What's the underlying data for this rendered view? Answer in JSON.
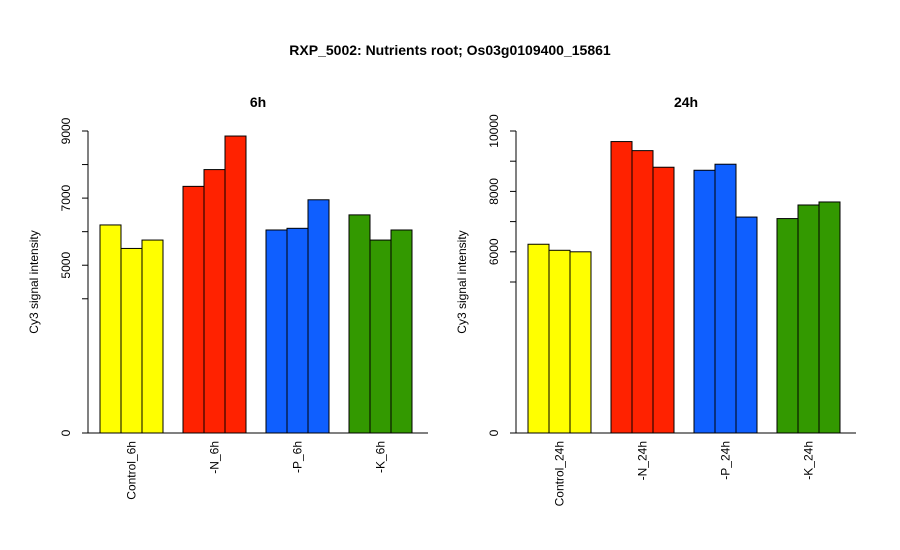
{
  "figure": {
    "title": "RXP_5002: Nutrients root; Os03g0109400_15861"
  },
  "chart_data": [
    {
      "type": "bar",
      "title": "6h",
      "ylabel": "Cy3 signal intensity",
      "ylim": [
        0,
        9000
      ],
      "yticks": [
        0,
        5000,
        7000,
        9000
      ],
      "categories": [
        "Control_6h",
        "-N_6h",
        "-P_6h",
        "-K_6h"
      ],
      "group_colors": [
        "#FFFF00",
        "#FF2200",
        "#0F5FFF",
        "#339900"
      ],
      "series": [
        {
          "values": [
            6200,
            7350,
            6050,
            6500
          ]
        },
        {
          "values": [
            5500,
            7850,
            6100,
            5750
          ]
        },
        {
          "values": [
            5750,
            8850,
            6950,
            6050
          ]
        }
      ]
    },
    {
      "type": "bar",
      "title": "24h",
      "ylabel": "Cy3 signal intensity",
      "ylim": [
        0,
        10000
      ],
      "yticks": [
        0,
        6000,
        8000,
        10000
      ],
      "categories": [
        "Control_24h",
        "-N_24h",
        "-P_24h",
        "-K_24h"
      ],
      "group_colors": [
        "#FFFF00",
        "#FF2200",
        "#0F5FFF",
        "#339900"
      ],
      "series": [
        {
          "values": [
            6250,
            9650,
            8700,
            7100
          ]
        },
        {
          "values": [
            6050,
            9350,
            8900,
            7550
          ]
        },
        {
          "values": [
            6000,
            8800,
            7150,
            7650
          ]
        }
      ]
    }
  ]
}
